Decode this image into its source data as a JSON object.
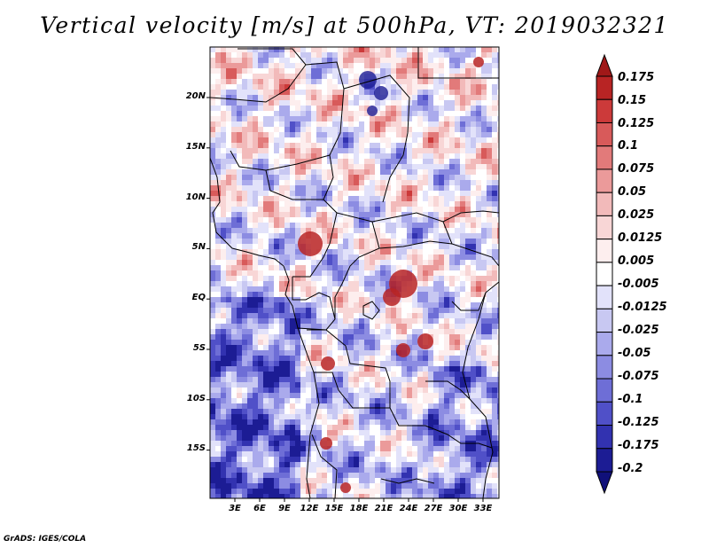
{
  "title": "Vertical velocity [m/s] at 500hPa, VT: 2019032321",
  "credit": "GrADS: IGES/COLA",
  "lat_labels": [
    "20N",
    "15N",
    "10N",
    "5N",
    "EQ",
    "5S",
    "10S",
    "15S"
  ],
  "lon_labels": [
    "3E",
    "6E",
    "9E",
    "12E",
    "15E",
    "18E",
    "21E",
    "24E",
    "27E",
    "30E",
    "33E"
  ],
  "colorbar": {
    "labels": [
      "0.175",
      "0.15",
      "0.125",
      "0.1",
      "0.075",
      "0.05",
      "0.025",
      "0.0125",
      "0.005",
      "-0.005",
      "-0.0125",
      "-0.025",
      "-0.05",
      "-0.075",
      "-0.1",
      "-0.125",
      "-0.175",
      "-0.2"
    ],
    "colors": [
      "#a01818",
      "#b82424",
      "#cc3a3a",
      "#d85a5a",
      "#e27a7a",
      "#eb9a9a",
      "#f2baba",
      "#f8d6d6",
      "#fdeeee",
      "#ffffff",
      "#e2e2fa",
      "#c8c8f2",
      "#aaaaec",
      "#8c8ce2",
      "#6e6ed6",
      "#5050c8",
      "#3232b0",
      "#1c1c94",
      "#10107a"
    ]
  }
}
